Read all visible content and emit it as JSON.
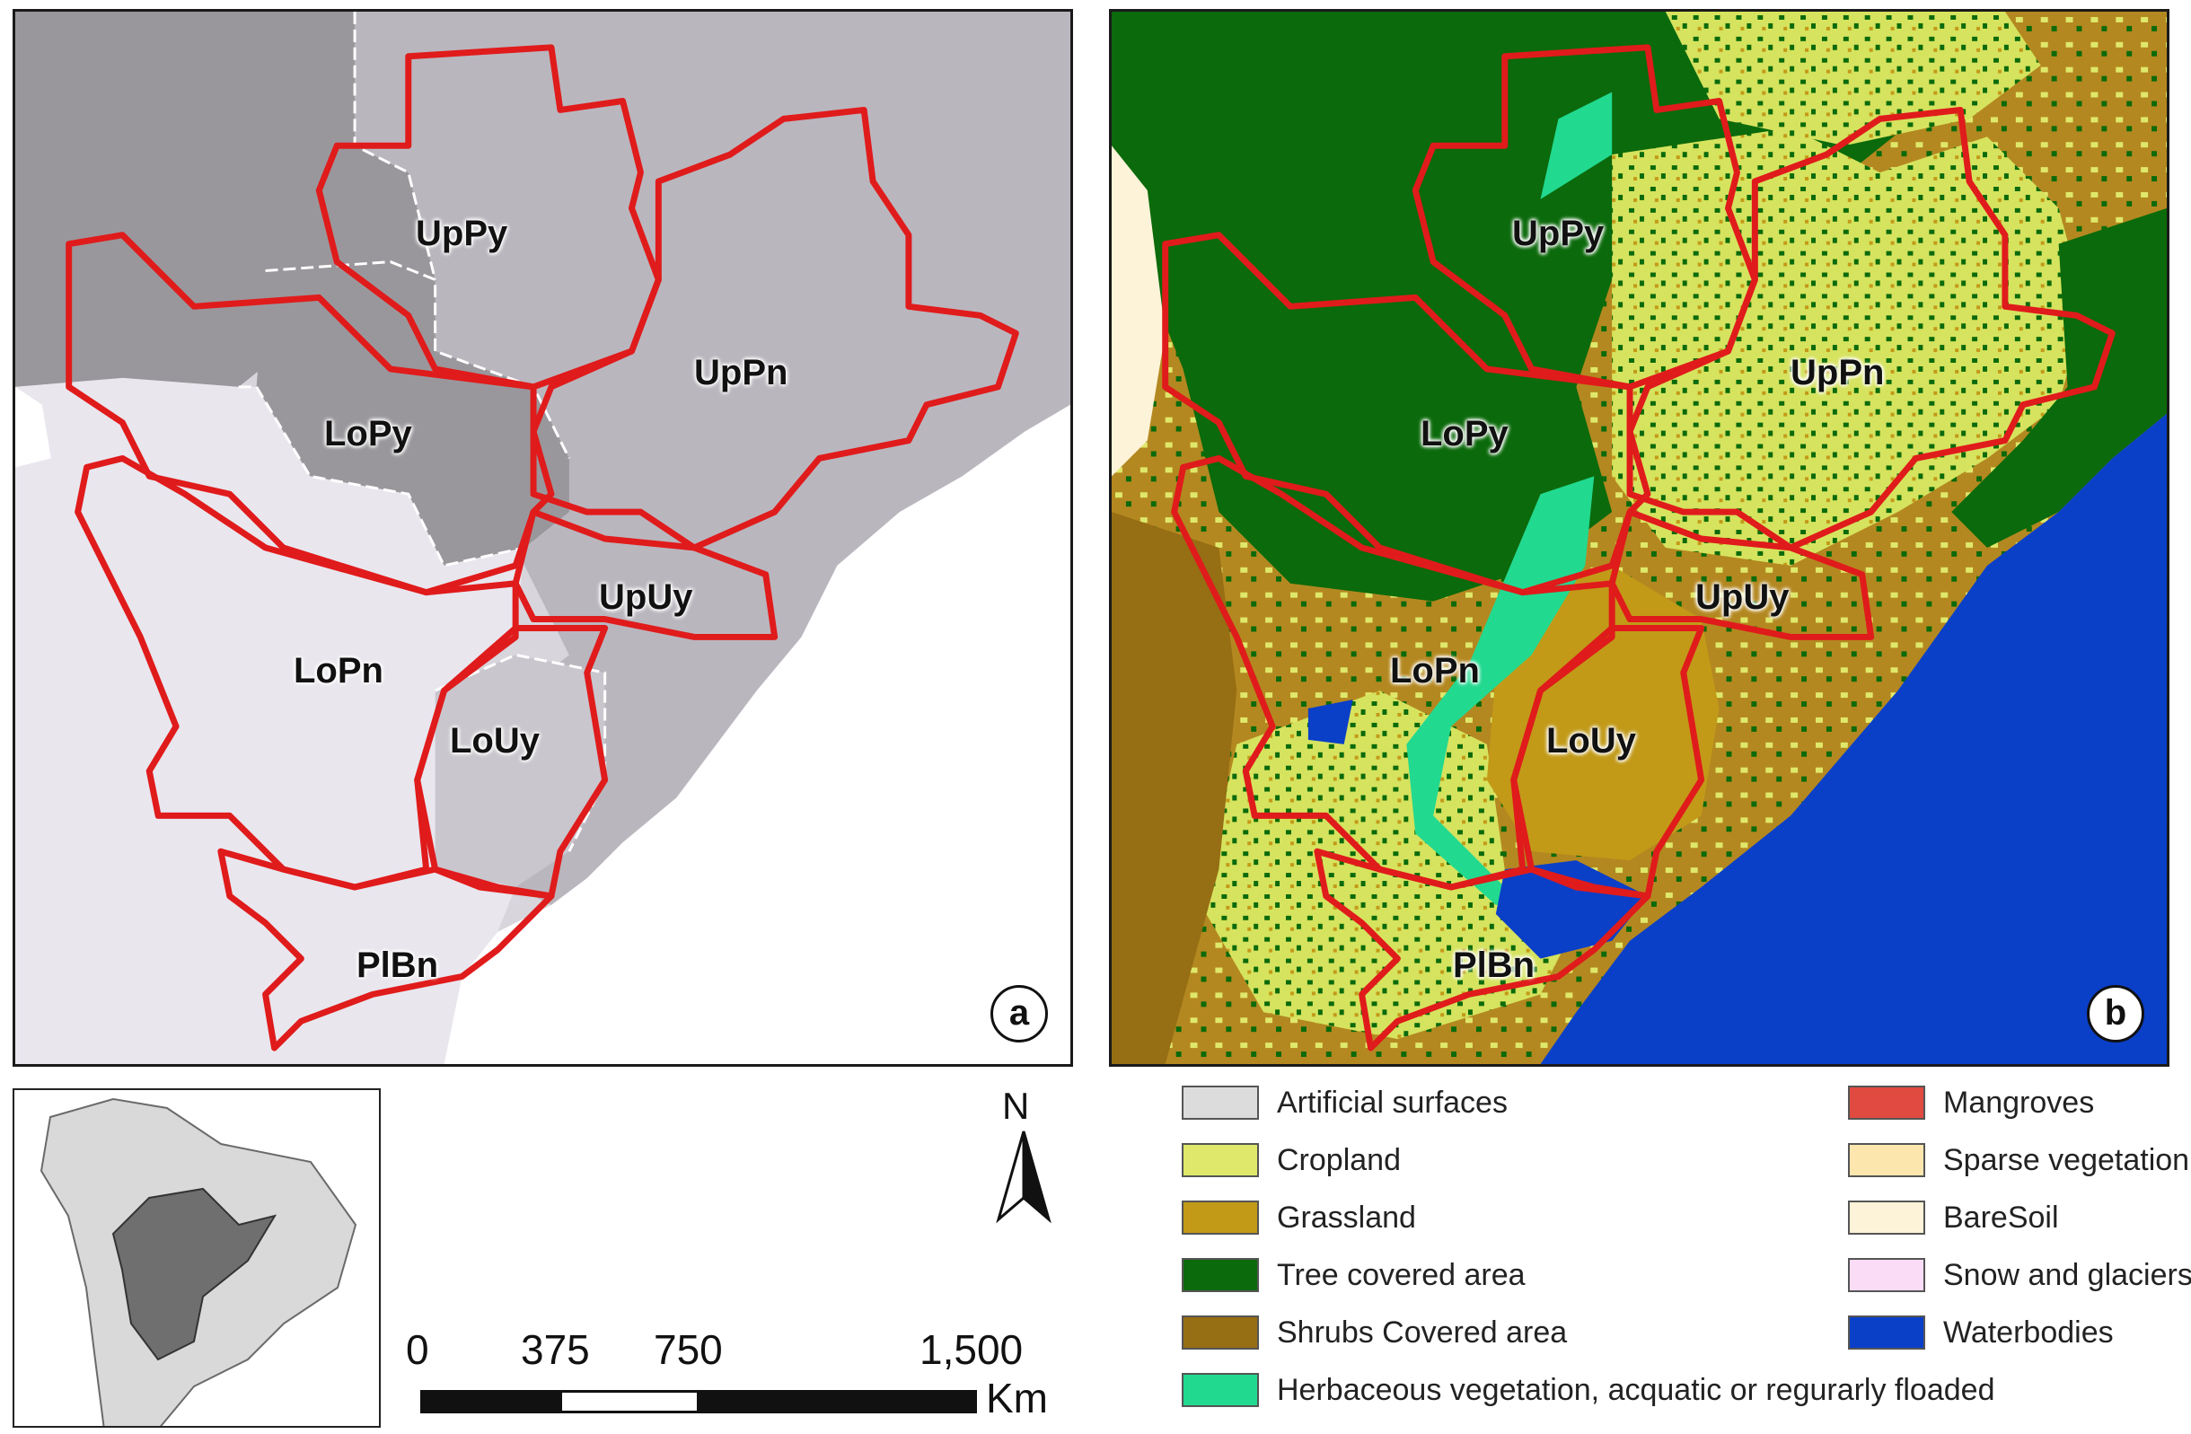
{
  "panels": {
    "a": {
      "badge": "a",
      "regions": {
        "uppy": "UpPy",
        "uppn": "UpPn",
        "lopy": "LoPy",
        "upuy": "UpUy",
        "lopn": "LoPn",
        "louy": "LoUy",
        "plbn": "PlBn"
      }
    },
    "b": {
      "badge": "b",
      "regions": {
        "uppy": "UpPy",
        "uppn": "UpPn",
        "lopy": "LoPy",
        "upuy": "UpUy",
        "lopn": "LoPn",
        "louy": "LoUy",
        "plbn": "PlBn"
      }
    }
  },
  "north_arrow": {
    "label": "N"
  },
  "scale_bar": {
    "ticks": [
      "0",
      "375",
      "750",
      "1,500"
    ],
    "unit": "Km"
  },
  "legend": {
    "items": [
      {
        "label": "Artificial surfaces",
        "color": "#dcdcdc"
      },
      {
        "label": "Cropland",
        "color": "#dfe86a"
      },
      {
        "label": "Grassland",
        "color": "#c29a18"
      },
      {
        "label": "Tree covered area",
        "color": "#0b6a0b"
      },
      {
        "label": "Shrubs Covered area",
        "color": "#966e14"
      },
      {
        "label": "Herbaceous vegetation, acquatic or regurarly floaded",
        "color": "#22d990"
      },
      {
        "label": "Mangroves",
        "color": "#e04a40"
      },
      {
        "label": "Sparse vegetation",
        "color": "#fde6ae"
      },
      {
        "label": "BareSoil",
        "color": "#fdf3d8"
      },
      {
        "label": "Snow and glaciers",
        "color": "#fbdcf6"
      },
      {
        "label": "Waterbodies",
        "color": "#0a3fc8"
      }
    ]
  },
  "colors": {
    "basin_outline": "#e01b1b",
    "country_dark": "#9a979c",
    "country_mid": "#bab6be",
    "country_light": "#e9e6ee",
    "ocean_a": "#ffffff",
    "ocean_b": "#0a3fc8"
  }
}
